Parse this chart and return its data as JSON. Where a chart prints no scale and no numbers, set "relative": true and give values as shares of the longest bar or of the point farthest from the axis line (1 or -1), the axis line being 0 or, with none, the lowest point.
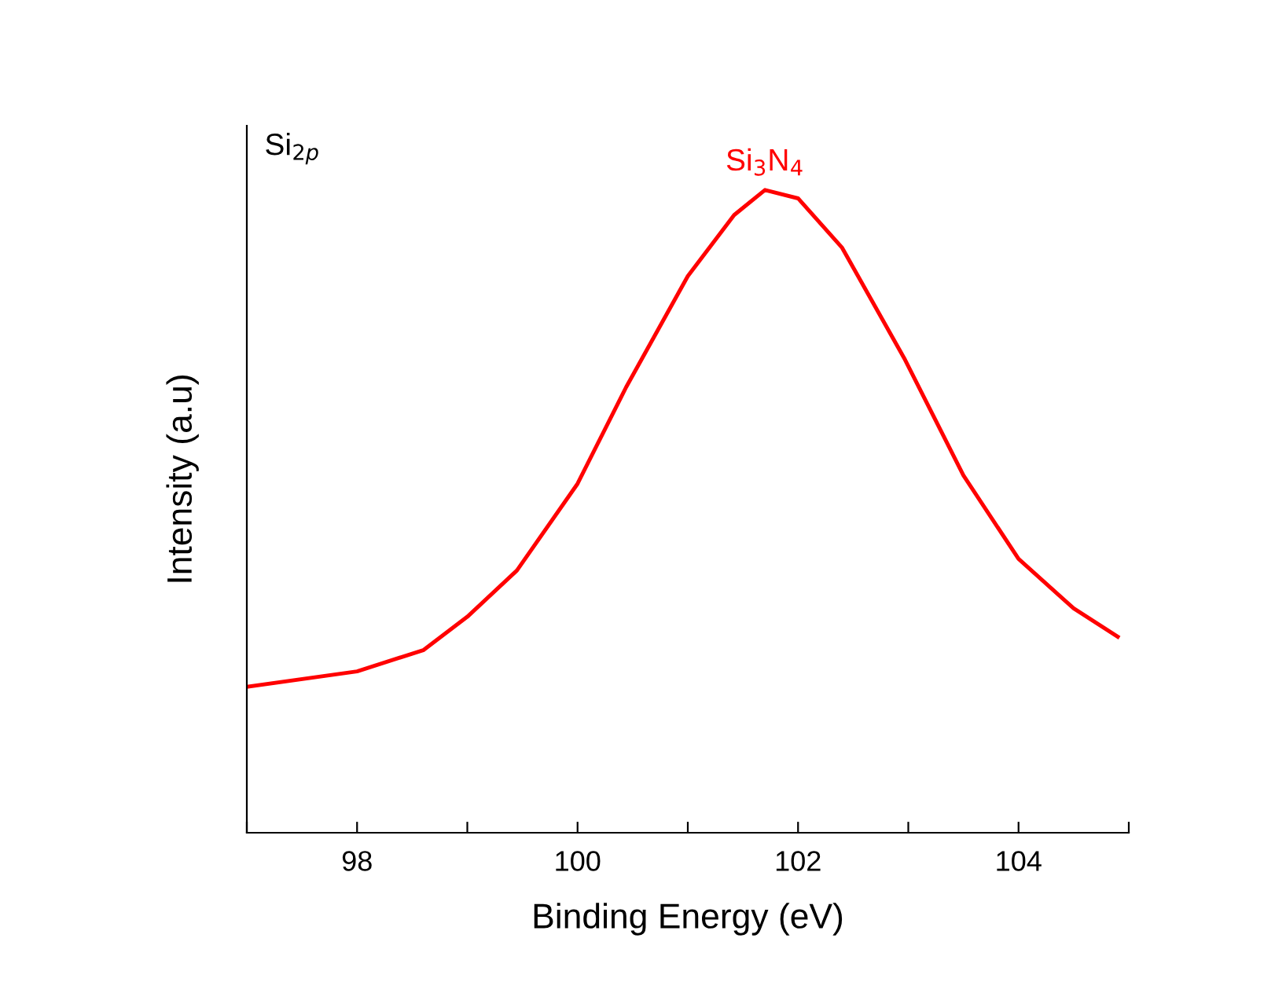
{
  "chart_data": {
    "type": "line",
    "relative": true,
    "xlabel": "Binding Energy (eV)",
    "ylabel": "Intensity (a.u)",
    "xlim": [
      97,
      105
    ],
    "xticks": [
      {
        "value": 97,
        "label": null
      },
      98,
      {
        "value": 99,
        "label": null
      },
      100,
      {
        "value": 101,
        "label": null
      },
      102,
      {
        "value": 103,
        "label": null
      },
      104,
      {
        "value": 105,
        "label": null
      }
    ],
    "grid": false,
    "legend": false,
    "marker": "none",
    "line_style": "solid",
    "series": [
      {
        "color": "#ff0000",
        "x": [
          97.0,
          98.0,
          98.6,
          99.0,
          99.45,
          100.0,
          100.44,
          101.0,
          101.42,
          101.7,
          102.0,
          102.4,
          102.97,
          103.5,
          104.0,
          104.5,
          104.9
        ],
        "values": [
          0.227,
          0.251,
          0.284,
          0.336,
          0.408,
          0.543,
          0.693,
          0.866,
          0.961,
          1.0,
          0.987,
          0.91,
          0.736,
          0.556,
          0.426,
          0.349,
          0.305
        ]
      }
    ],
    "annotations": [
      "Si$_{2p}$",
      {
        "text": "Si$_{3}$N$_{4}$",
        "x": 101.7,
        "y": 1.0
      }
    ]
  }
}
